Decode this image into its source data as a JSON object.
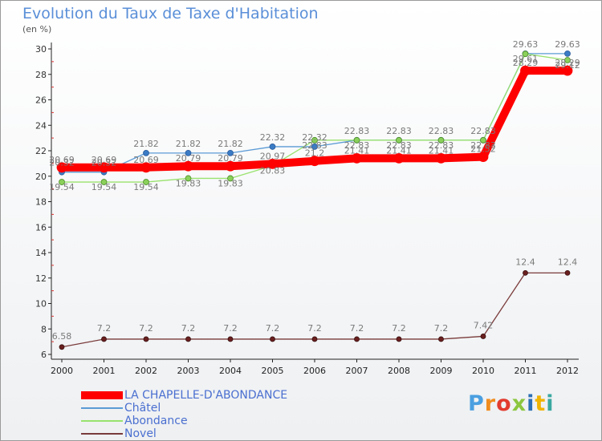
{
  "chart_data": {
    "type": "line",
    "title": "Evolution du Taux de Taxe d'Habitation",
    "ylabel": "(en %)",
    "x": [
      "2000",
      "2001",
      "2002",
      "2003",
      "2004",
      "2005",
      "2006",
      "2007",
      "2008",
      "2009",
      "2010",
      "2011",
      "2012"
    ],
    "ylim": [
      6,
      30
    ],
    "yticks": [
      6,
      8,
      10,
      12,
      14,
      16,
      18,
      20,
      22,
      24,
      26,
      28,
      30
    ],
    "grid": false,
    "legend_position": "bottom-left",
    "series": [
      {
        "name": "LA CHAPELLE-D'ABONDANCE",
        "color": "#ff0000",
        "values": [
          20.69,
          20.69,
          20.69,
          20.79,
          20.79,
          20.97,
          21.2,
          21.41,
          21.41,
          21.41,
          21.52,
          28.29,
          28.29
        ],
        "labels": [
          "20.69",
          "20.69",
          "20.69",
          "20.79",
          "20.79",
          "20.97",
          "21.2",
          "21.41",
          "21.41",
          "21.41",
          "21.52",
          "28.29",
          "28.29"
        ]
      },
      {
        "name": "Châtel",
        "color": "#5b9bd5",
        "values": [
          20.32,
          20.32,
          21.82,
          21.82,
          21.82,
          22.32,
          22.32,
          22.83,
          22.83,
          22.83,
          22.83,
          29.63,
          29.63
        ],
        "labels": [
          "20.32",
          "20.32",
          "21.82",
          "21.82",
          "21.82",
          "22.32",
          "22.32",
          "22.83",
          "22.83",
          "22.83",
          "22.83",
          "29.63",
          "29.63"
        ]
      },
      {
        "name": "Abondance",
        "color": "#99e26e",
        "values": [
          19.54,
          19.54,
          19.54,
          19.83,
          19.83,
          20.83,
          22.83,
          22.83,
          22.83,
          22.83,
          22.83,
          29.61,
          29.12
        ],
        "labels": [
          "19.54",
          "19.54",
          "19.54",
          "19.83",
          "19.83",
          "20.83",
          "22.83",
          "22.83",
          "22.83",
          "22.83",
          "22.83",
          "29.61",
          "29.12"
        ]
      },
      {
        "name": "Novel",
        "color": "#7a3b3b",
        "values": [
          6.58,
          7.2,
          7.2,
          7.2,
          7.2,
          7.2,
          7.2,
          7.2,
          7.2,
          7.2,
          7.42,
          12.4,
          12.4
        ],
        "labels": [
          "6.58",
          "7.2",
          "7.2",
          "7.2",
          "7.2",
          "7.2",
          "7.2",
          "7.2",
          "7.2",
          "7.2",
          "7.42",
          "12.4",
          "12.4"
        ]
      }
    ]
  },
  "legend": {
    "items": [
      {
        "label": "LA CHAPELLE-D'ABONDANCE",
        "color": "#ff0000"
      },
      {
        "label": "Châtel",
        "color": "#5b9bd5"
      },
      {
        "label": "Abondance",
        "color": "#99e26e"
      },
      {
        "label": "Novel",
        "color": "#7a3b3b"
      }
    ]
  },
  "logo": {
    "letters": [
      "P",
      "r",
      "o",
      "x",
      "i",
      "t",
      "i"
    ],
    "colors": [
      "#4a9fe0",
      "#f08c1e",
      "#e23b2f",
      "#8cc63f",
      "#2c6fb5",
      "#f0b400",
      "#3aa8a0"
    ]
  }
}
